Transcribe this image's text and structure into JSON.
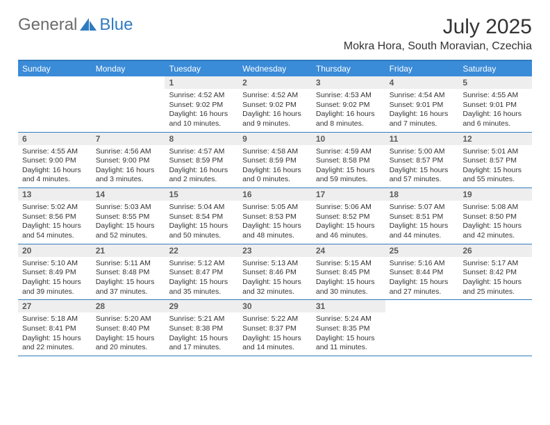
{
  "brand": {
    "general": "General",
    "blue": "Blue"
  },
  "title": "July 2025",
  "location": "Mokra Hora, South Moravian, Czechia",
  "colors": {
    "header_bar": "#3a8bd8",
    "border": "#2f7bbf",
    "daynum_bg": "#eeeeee",
    "daynum_fg": "#5b5b5b",
    "text": "#333333",
    "logo_gray": "#6b6b6b",
    "logo_blue": "#2f7bbf",
    "background": "#ffffff"
  },
  "day_labels": [
    "Sunday",
    "Monday",
    "Tuesday",
    "Wednesday",
    "Thursday",
    "Friday",
    "Saturday"
  ],
  "first_weekday_index": 2,
  "days": [
    {
      "n": 1,
      "sunrise": "4:52 AM",
      "sunset": "9:02 PM",
      "daylight": "16 hours and 10 minutes."
    },
    {
      "n": 2,
      "sunrise": "4:52 AM",
      "sunset": "9:02 PM",
      "daylight": "16 hours and 9 minutes."
    },
    {
      "n": 3,
      "sunrise": "4:53 AM",
      "sunset": "9:02 PM",
      "daylight": "16 hours and 8 minutes."
    },
    {
      "n": 4,
      "sunrise": "4:54 AM",
      "sunset": "9:01 PM",
      "daylight": "16 hours and 7 minutes."
    },
    {
      "n": 5,
      "sunrise": "4:55 AM",
      "sunset": "9:01 PM",
      "daylight": "16 hours and 6 minutes."
    },
    {
      "n": 6,
      "sunrise": "4:55 AM",
      "sunset": "9:00 PM",
      "daylight": "16 hours and 4 minutes."
    },
    {
      "n": 7,
      "sunrise": "4:56 AM",
      "sunset": "9:00 PM",
      "daylight": "16 hours and 3 minutes."
    },
    {
      "n": 8,
      "sunrise": "4:57 AM",
      "sunset": "8:59 PM",
      "daylight": "16 hours and 2 minutes."
    },
    {
      "n": 9,
      "sunrise": "4:58 AM",
      "sunset": "8:59 PM",
      "daylight": "16 hours and 0 minutes."
    },
    {
      "n": 10,
      "sunrise": "4:59 AM",
      "sunset": "8:58 PM",
      "daylight": "15 hours and 59 minutes."
    },
    {
      "n": 11,
      "sunrise": "5:00 AM",
      "sunset": "8:57 PM",
      "daylight": "15 hours and 57 minutes."
    },
    {
      "n": 12,
      "sunrise": "5:01 AM",
      "sunset": "8:57 PM",
      "daylight": "15 hours and 55 minutes."
    },
    {
      "n": 13,
      "sunrise": "5:02 AM",
      "sunset": "8:56 PM",
      "daylight": "15 hours and 54 minutes."
    },
    {
      "n": 14,
      "sunrise": "5:03 AM",
      "sunset": "8:55 PM",
      "daylight": "15 hours and 52 minutes."
    },
    {
      "n": 15,
      "sunrise": "5:04 AM",
      "sunset": "8:54 PM",
      "daylight": "15 hours and 50 minutes."
    },
    {
      "n": 16,
      "sunrise": "5:05 AM",
      "sunset": "8:53 PM",
      "daylight": "15 hours and 48 minutes."
    },
    {
      "n": 17,
      "sunrise": "5:06 AM",
      "sunset": "8:52 PM",
      "daylight": "15 hours and 46 minutes."
    },
    {
      "n": 18,
      "sunrise": "5:07 AM",
      "sunset": "8:51 PM",
      "daylight": "15 hours and 44 minutes."
    },
    {
      "n": 19,
      "sunrise": "5:08 AM",
      "sunset": "8:50 PM",
      "daylight": "15 hours and 42 minutes."
    },
    {
      "n": 20,
      "sunrise": "5:10 AM",
      "sunset": "8:49 PM",
      "daylight": "15 hours and 39 minutes."
    },
    {
      "n": 21,
      "sunrise": "5:11 AM",
      "sunset": "8:48 PM",
      "daylight": "15 hours and 37 minutes."
    },
    {
      "n": 22,
      "sunrise": "5:12 AM",
      "sunset": "8:47 PM",
      "daylight": "15 hours and 35 minutes."
    },
    {
      "n": 23,
      "sunrise": "5:13 AM",
      "sunset": "8:46 PM",
      "daylight": "15 hours and 32 minutes."
    },
    {
      "n": 24,
      "sunrise": "5:15 AM",
      "sunset": "8:45 PM",
      "daylight": "15 hours and 30 minutes."
    },
    {
      "n": 25,
      "sunrise": "5:16 AM",
      "sunset": "8:44 PM",
      "daylight": "15 hours and 27 minutes."
    },
    {
      "n": 26,
      "sunrise": "5:17 AM",
      "sunset": "8:42 PM",
      "daylight": "15 hours and 25 minutes."
    },
    {
      "n": 27,
      "sunrise": "5:18 AM",
      "sunset": "8:41 PM",
      "daylight": "15 hours and 22 minutes."
    },
    {
      "n": 28,
      "sunrise": "5:20 AM",
      "sunset": "8:40 PM",
      "daylight": "15 hours and 20 minutes."
    },
    {
      "n": 29,
      "sunrise": "5:21 AM",
      "sunset": "8:38 PM",
      "daylight": "15 hours and 17 minutes."
    },
    {
      "n": 30,
      "sunrise": "5:22 AM",
      "sunset": "8:37 PM",
      "daylight": "15 hours and 14 minutes."
    },
    {
      "n": 31,
      "sunrise": "5:24 AM",
      "sunset": "8:35 PM",
      "daylight": "15 hours and 11 minutes."
    }
  ],
  "labels": {
    "sunrise": "Sunrise:",
    "sunset": "Sunset:",
    "daylight": "Daylight:"
  }
}
